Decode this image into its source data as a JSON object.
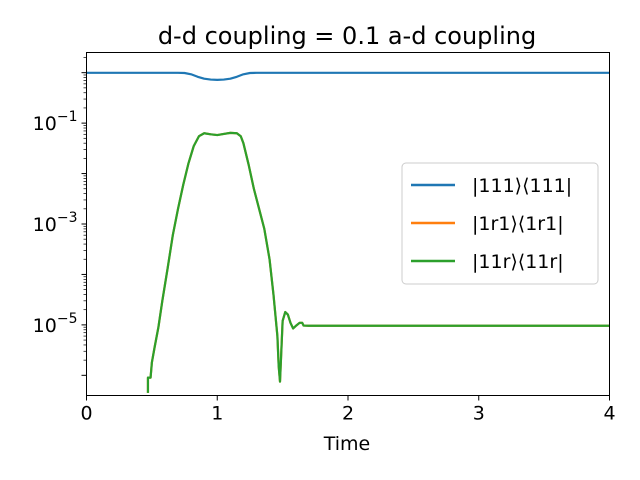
{
  "chart_data": {
    "type": "line",
    "title": "d-d coupling = 0.1 a-d coupling",
    "xlabel": "Time",
    "ylabel": "",
    "xlim": [
      0,
      4
    ],
    "ylim_log10": [
      -6.4,
      0.4
    ],
    "yscale": "log",
    "grid": false,
    "legend_position": "right",
    "x_ticks": [
      "0",
      "1",
      "2",
      "3",
      "4"
    ],
    "y_ticks": [
      {
        "base": "10",
        "exp": "−1"
      },
      {
        "base": "10",
        "exp": "−3"
      },
      {
        "base": "10",
        "exp": "−5"
      }
    ],
    "series": [
      {
        "name": "|111⟩⟨111|",
        "color": "#1f77b4",
        "points": [
          [
            0,
            0.995
          ],
          [
            0.7,
            0.995
          ],
          [
            0.75,
            0.985
          ],
          [
            0.8,
            0.93
          ],
          [
            0.85,
            0.83
          ],
          [
            0.9,
            0.76
          ],
          [
            0.95,
            0.73
          ],
          [
            1.0,
            0.72
          ],
          [
            1.05,
            0.73
          ],
          [
            1.1,
            0.76
          ],
          [
            1.15,
            0.83
          ],
          [
            1.2,
            0.93
          ],
          [
            1.25,
            0.985
          ],
          [
            1.3,
            0.995
          ],
          [
            4,
            0.995
          ]
        ]
      },
      {
        "name": "|1r1⟩⟨1r1|",
        "color": "#ff7f0e",
        "points": [
          [
            0.47,
            4.5e-07
          ],
          [
            0.47,
            9e-07
          ],
          [
            0.49,
            9e-07
          ],
          [
            0.5,
            1.8e-06
          ],
          [
            0.52,
            3.5e-06
          ],
          [
            0.55,
            9e-06
          ],
          [
            0.58,
            3e-05
          ],
          [
            0.62,
            0.00013
          ],
          [
            0.66,
            0.0006
          ],
          [
            0.7,
            0.002
          ],
          [
            0.74,
            0.006
          ],
          [
            0.78,
            0.016
          ],
          [
            0.82,
            0.035
          ],
          [
            0.86,
            0.055
          ],
          [
            0.9,
            0.063
          ],
          [
            0.95,
            0.06
          ],
          [
            1.0,
            0.058
          ],
          [
            1.05,
            0.061
          ],
          [
            1.1,
            0.064
          ],
          [
            1.15,
            0.063
          ],
          [
            1.18,
            0.055
          ],
          [
            1.2,
            0.04
          ],
          [
            1.24,
            0.015
          ],
          [
            1.28,
            0.005
          ],
          [
            1.32,
            0.002
          ],
          [
            1.36,
            0.0008
          ],
          [
            1.4,
            0.0002
          ],
          [
            1.43,
            4e-05
          ],
          [
            1.46,
            6e-06
          ],
          [
            1.47,
            1.5e-06
          ],
          [
            1.48,
            7.5e-07
          ],
          [
            1.49,
            3e-06
          ],
          [
            1.5,
            1.2e-05
          ],
          [
            1.52,
            1.8e-05
          ],
          [
            1.54,
            1.6e-05
          ],
          [
            1.56,
            1.1e-05
          ],
          [
            1.58,
            8.5e-06
          ],
          [
            1.6,
            9.5e-06
          ],
          [
            1.63,
            1.1e-05
          ],
          [
            1.65,
            1.1e-05
          ],
          [
            1.66,
            9.7e-06
          ],
          [
            1.7,
            9.6e-06
          ],
          [
            4,
            9.6e-06
          ]
        ]
      },
      {
        "name": "|11r⟩⟨11r|",
        "color": "#2ca02c",
        "points": [
          [
            0.47,
            4.5e-07
          ],
          [
            0.47,
            9e-07
          ],
          [
            0.49,
            9e-07
          ],
          [
            0.5,
            1.8e-06
          ],
          [
            0.52,
            3.5e-06
          ],
          [
            0.55,
            9e-06
          ],
          [
            0.58,
            3e-05
          ],
          [
            0.62,
            0.00013
          ],
          [
            0.66,
            0.0006
          ],
          [
            0.7,
            0.002
          ],
          [
            0.74,
            0.006
          ],
          [
            0.78,
            0.016
          ],
          [
            0.82,
            0.035
          ],
          [
            0.86,
            0.055
          ],
          [
            0.9,
            0.063
          ],
          [
            0.95,
            0.06
          ],
          [
            1.0,
            0.058
          ],
          [
            1.05,
            0.061
          ],
          [
            1.1,
            0.064
          ],
          [
            1.15,
            0.063
          ],
          [
            1.18,
            0.055
          ],
          [
            1.2,
            0.04
          ],
          [
            1.24,
            0.015
          ],
          [
            1.28,
            0.005
          ],
          [
            1.32,
            0.002
          ],
          [
            1.36,
            0.0008
          ],
          [
            1.4,
            0.0002
          ],
          [
            1.43,
            4e-05
          ],
          [
            1.46,
            6e-06
          ],
          [
            1.47,
            1.5e-06
          ],
          [
            1.48,
            7.5e-07
          ],
          [
            1.49,
            3e-06
          ],
          [
            1.5,
            1.2e-05
          ],
          [
            1.52,
            1.8e-05
          ],
          [
            1.54,
            1.6e-05
          ],
          [
            1.56,
            1.1e-05
          ],
          [
            1.58,
            8.5e-06
          ],
          [
            1.6,
            9.5e-06
          ],
          [
            1.63,
            1.1e-05
          ],
          [
            1.65,
            1.1e-05
          ],
          [
            1.66,
            9.7e-06
          ],
          [
            1.7,
            9.6e-06
          ],
          [
            4,
            9.6e-06
          ]
        ]
      }
    ]
  }
}
